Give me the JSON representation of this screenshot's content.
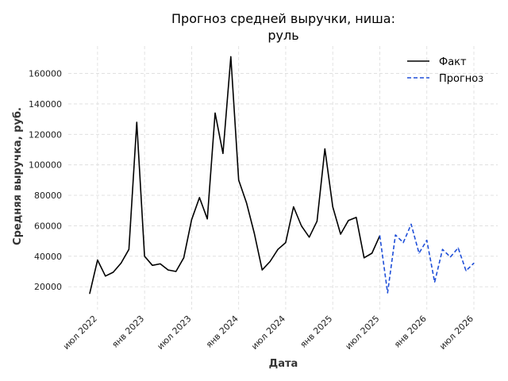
{
  "chart_data": {
    "type": "line",
    "title_lines": [
      "Прогноз средней выручки, ниша:",
      "руль"
    ],
    "xlabel": "Дата",
    "ylabel": "Средняя выручка, руб.",
    "x_start": "2022-06",
    "xlim": [
      "2022-06",
      "2026-07"
    ],
    "ylim": [
      5000,
      178000
    ],
    "yticks": [
      20000,
      40000,
      60000,
      80000,
      100000,
      120000,
      140000,
      160000
    ],
    "xticks": [
      {
        "date": "2022-07",
        "label": "июл 2022"
      },
      {
        "date": "2023-01",
        "label": "янв 2023"
      },
      {
        "date": "2023-07",
        "label": "июл 2023"
      },
      {
        "date": "2024-01",
        "label": "янв 2024"
      },
      {
        "date": "2024-07",
        "label": "июл 2024"
      },
      {
        "date": "2025-01",
        "label": "янв 2025"
      },
      {
        "date": "2025-07",
        "label": "июл 2025"
      },
      {
        "date": "2026-01",
        "label": "янв 2026"
      },
      {
        "date": "2026-07",
        "label": "июл 2026"
      }
    ],
    "grid": true,
    "legend_position": "top-right",
    "series": [
      {
        "name": "Факт",
        "color": "#000000",
        "style": "solid",
        "points": [
          [
            "2022-06",
            15500
          ],
          [
            "2022-07",
            37500
          ],
          [
            "2022-08",
            27000
          ],
          [
            "2022-09",
            29500
          ],
          [
            "2022-10",
            35500
          ],
          [
            "2022-11",
            44500
          ],
          [
            "2022-12",
            128000
          ],
          [
            "2023-01",
            40000
          ],
          [
            "2023-02",
            34000
          ],
          [
            "2023-03",
            35000
          ],
          [
            "2023-04",
            31000
          ],
          [
            "2023-05",
            30000
          ],
          [
            "2023-06",
            39000
          ],
          [
            "2023-07",
            64000
          ],
          [
            "2023-08",
            78500
          ],
          [
            "2023-09",
            64500
          ],
          [
            "2023-10",
            134000
          ],
          [
            "2023-11",
            107500
          ],
          [
            "2023-12",
            171000
          ],
          [
            "2024-01",
            90000
          ],
          [
            "2024-02",
            75000
          ],
          [
            "2024-03",
            55000
          ],
          [
            "2024-04",
            31000
          ],
          [
            "2024-05",
            36500
          ],
          [
            "2024-06",
            44500
          ],
          [
            "2024-07",
            49000
          ],
          [
            "2024-08",
            72500
          ],
          [
            "2024-09",
            60000
          ],
          [
            "2024-10",
            52500
          ],
          [
            "2024-11",
            63000
          ],
          [
            "2024-12",
            110500
          ],
          [
            "2025-01",
            72500
          ],
          [
            "2025-02",
            54500
          ],
          [
            "2025-03",
            63500
          ],
          [
            "2025-04",
            65500
          ],
          [
            "2025-05",
            39000
          ],
          [
            "2025-06",
            42000
          ],
          [
            "2025-07",
            53500
          ]
        ]
      },
      {
        "name": "Прогноз",
        "color": "#1f4fd8",
        "style": "dashed",
        "points": [
          [
            "2025-07",
            53500
          ],
          [
            "2025-08",
            16000
          ],
          [
            "2025-09",
            54000
          ],
          [
            "2025-10",
            49000
          ],
          [
            "2025-11",
            61000
          ],
          [
            "2025-12",
            42000
          ],
          [
            "2026-01",
            50500
          ],
          [
            "2026-02",
            23000
          ],
          [
            "2026-03",
            44500
          ],
          [
            "2026-04",
            39500
          ],
          [
            "2026-05",
            45500
          ],
          [
            "2026-06",
            30500
          ],
          [
            "2026-07",
            35500
          ]
        ]
      }
    ]
  }
}
